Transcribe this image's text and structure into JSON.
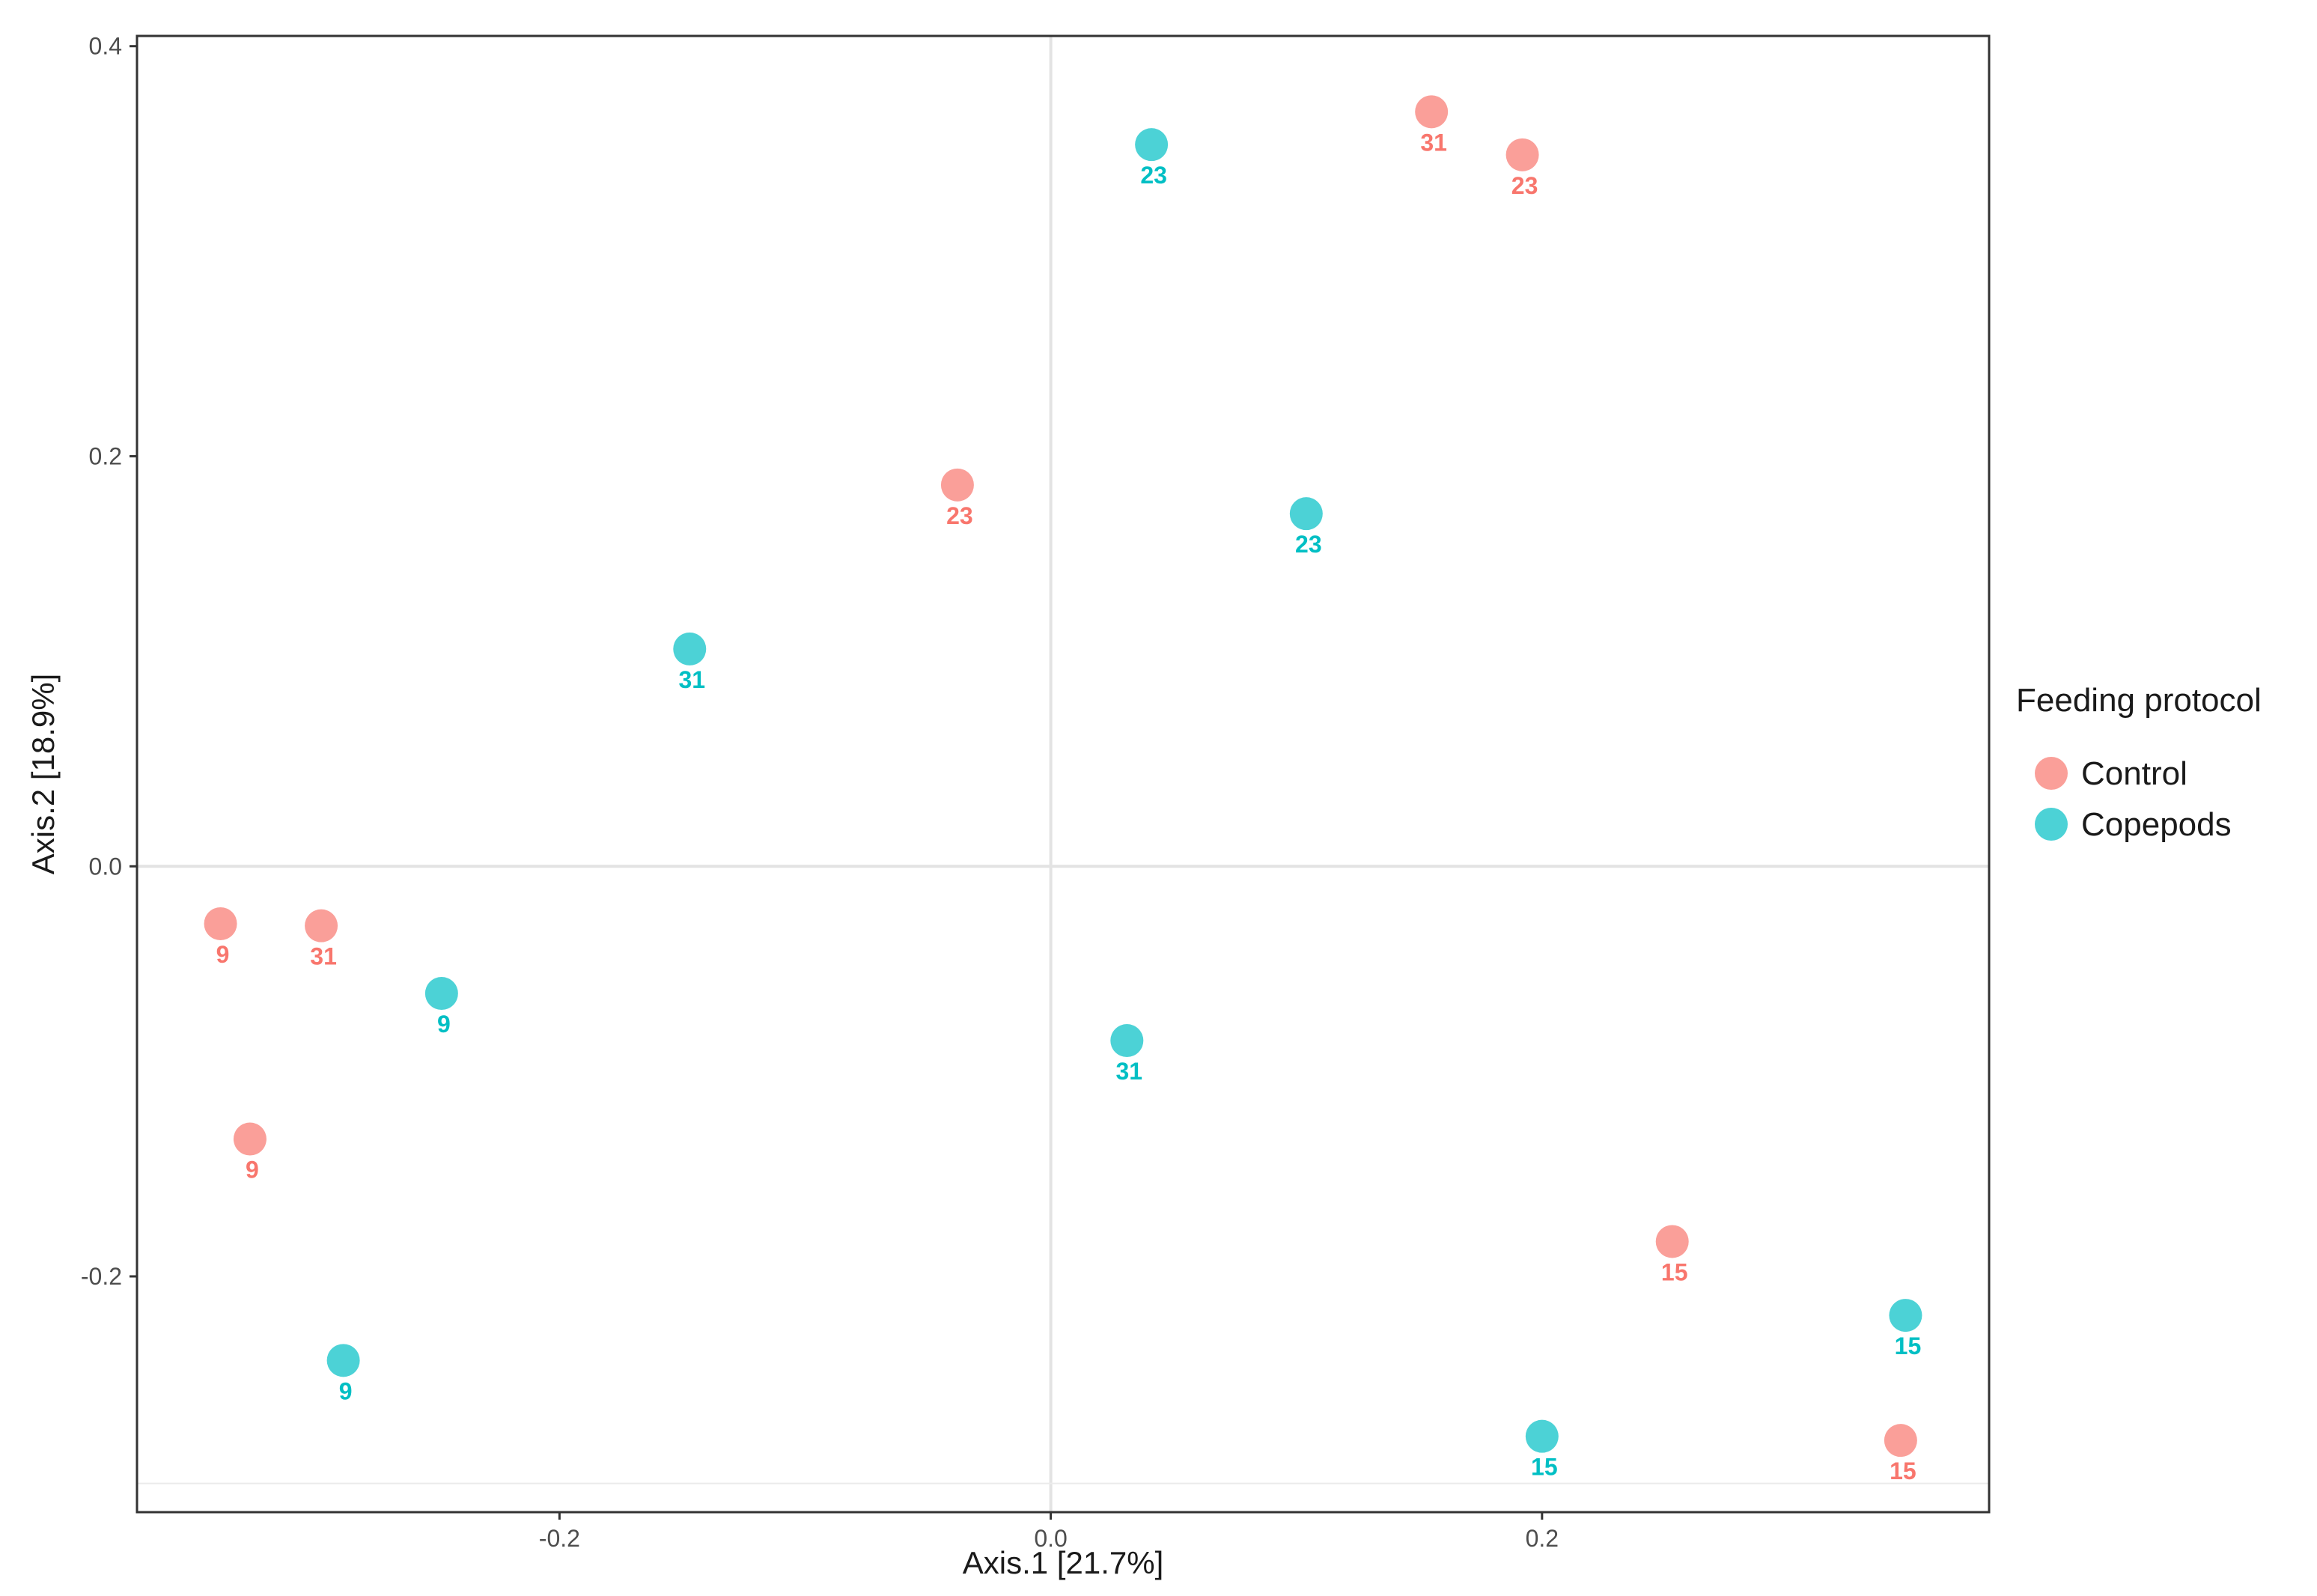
{
  "chart_data": {
    "type": "scatter",
    "xlabel": "Axis.1   [21.7%]",
    "ylabel": "Axis.2   [18.9%]",
    "xlim": [
      -0.372,
      0.382
    ],
    "ylim": [
      -0.315,
      0.405
    ],
    "x_ticks": [
      {
        "value": -0.2,
        "label": "-0.2"
      },
      {
        "value": 0.0,
        "label": "0.0"
      },
      {
        "value": 0.2,
        "label": "0.2"
      }
    ],
    "y_ticks": [
      {
        "value": 0.4,
        "label": "0.4"
      },
      {
        "value": 0.2,
        "label": "0.2"
      },
      {
        "value": 0.0,
        "label": "0.0"
      },
      {
        "value": -0.2,
        "label": "-0.2"
      }
    ],
    "reference_lines": {
      "x": 0.0,
      "y": 0.0,
      "y_bottom": -0.301
    },
    "grid": false,
    "legend": {
      "title": "Feeding protocol",
      "placement": "right"
    },
    "series": [
      {
        "name": "Control",
        "color": "#F8766D",
        "points": [
          {
            "x": 0.155,
            "y": 0.368,
            "label": "31"
          },
          {
            "x": 0.192,
            "y": 0.347,
            "label": "23"
          },
          {
            "x": -0.038,
            "y": 0.186,
            "label": "23"
          },
          {
            "x": -0.338,
            "y": -0.028,
            "label": "9"
          },
          {
            "x": -0.297,
            "y": -0.029,
            "label": "31"
          },
          {
            "x": -0.326,
            "y": -0.133,
            "label": "9"
          },
          {
            "x": 0.253,
            "y": -0.183,
            "label": "15"
          },
          {
            "x": 0.346,
            "y": -0.28,
            "label": "15"
          }
        ]
      },
      {
        "name": "Copepods",
        "color": "#00BFC4",
        "points": [
          {
            "x": 0.041,
            "y": 0.352,
            "label": "23"
          },
          {
            "x": 0.104,
            "y": 0.172,
            "label": "23"
          },
          {
            "x": -0.147,
            "y": 0.106,
            "label": "31"
          },
          {
            "x": -0.248,
            "y": -0.062,
            "label": "9"
          },
          {
            "x": 0.031,
            "y": -0.085,
            "label": "31"
          },
          {
            "x": -0.288,
            "y": -0.241,
            "label": "9"
          },
          {
            "x": 0.348,
            "y": -0.219,
            "label": "15"
          },
          {
            "x": 0.2,
            "y": -0.278,
            "label": "15"
          }
        ]
      }
    ]
  }
}
